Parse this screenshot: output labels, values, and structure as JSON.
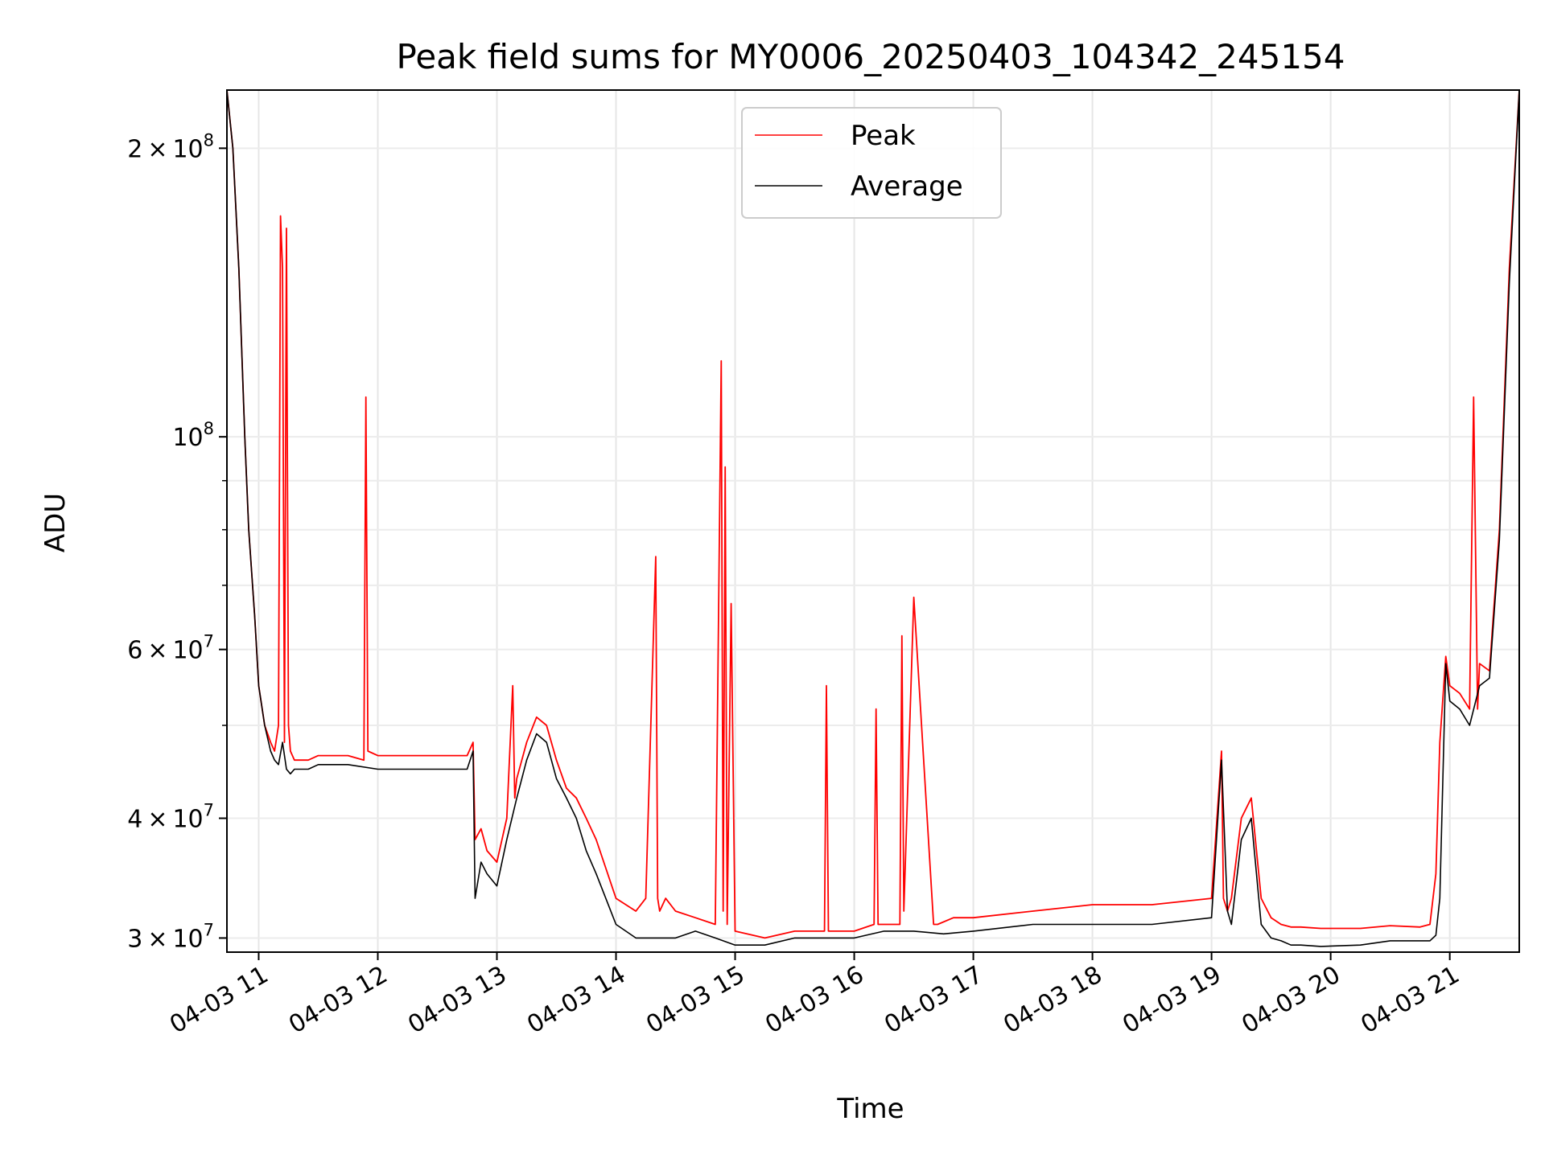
{
  "chart_data": {
    "type": "line",
    "title": "Peak field sums for MY0006_20250403_104342_245154",
    "xlabel": "Time",
    "ylabel": "ADU",
    "y_scale": "log",
    "grid": true,
    "legend_position": "top-center",
    "x_ticks": [
      "04-03 11",
      "04-03 12",
      "04-03 13",
      "04-03 14",
      "04-03 15",
      "04-03 16",
      "04-03 17",
      "04-03 18",
      "04-03 19",
      "04-03 20",
      "04-03 21"
    ],
    "x_range": [
      "04-03 10:44",
      "04-03 21:35"
    ],
    "y_ticks": [
      {
        "value": 30000000,
        "mantissa": "3",
        "exponent": "7"
      },
      {
        "value": 40000000,
        "mantissa": "4",
        "exponent": "7"
      },
      {
        "value": 60000000,
        "mantissa": "6",
        "exponent": "7"
      },
      {
        "value": 100000000,
        "mantissa": "",
        "exponent": "8"
      },
      {
        "value": 200000000,
        "mantissa": "2",
        "exponent": "8"
      }
    ],
    "y_range": [
      29000000,
      230000000
    ],
    "series": [
      {
        "name": "Peak",
        "color": "#ff0000",
        "x": [
          "10:44",
          "10:47",
          "10:50",
          "10:53",
          "10:55",
          "10:58",
          "11:00",
          "11:03",
          "11:06",
          "11:08",
          "11:10",
          "11:11",
          "11:12",
          "11:13",
          "11:14",
          "11:15",
          "11:16",
          "11:18",
          "11:20",
          "11:25",
          "11:30",
          "11:45",
          "11:53",
          "11:54",
          "11:55",
          "12:00",
          "12:15",
          "12:30",
          "12:45",
          "12:48",
          "12:49",
          "12:52",
          "12:55",
          "13:00",
          "13:05",
          "13:08",
          "13:09",
          "13:10",
          "13:15",
          "13:20",
          "13:25",
          "13:30",
          "13:35",
          "13:40",
          "13:45",
          "13:50",
          "14:00",
          "14:10",
          "14:15",
          "14:20",
          "14:21",
          "14:22",
          "14:25",
          "14:30",
          "14:40",
          "14:50",
          "14:53",
          "14:54",
          "14:55",
          "14:56",
          "14:58",
          "15:00",
          "15:15",
          "15:30",
          "15:45",
          "15:46",
          "15:47",
          "16:00",
          "16:10",
          "16:11",
          "16:12",
          "16:23",
          "16:24",
          "16:25",
          "16:30",
          "16:40",
          "16:41",
          "16:42",
          "16:50",
          "17:00",
          "17:30",
          "18:00",
          "18:30",
          "19:00",
          "19:05",
          "19:06",
          "19:08",
          "19:10",
          "19:15",
          "19:20",
          "19:25",
          "19:30",
          "19:35",
          "19:40",
          "19:45",
          "19:55",
          "20:15",
          "20:30",
          "20:45",
          "20:50",
          "20:53",
          "20:55",
          "20:58",
          "21:00",
          "21:05",
          "21:10",
          "21:12",
          "21:14",
          "21:15",
          "21:20",
          "21:25",
          "21:30",
          "21:35"
        ],
        "values": [
          230000000,
          200000000,
          150000000,
          100000000,
          80000000,
          65000000,
          55000000,
          50000000,
          48000000,
          47000000,
          50000000,
          170000000,
          150000000,
          48000000,
          165000000,
          50000000,
          47000000,
          46000000,
          46000000,
          46000000,
          46500000,
          46500000,
          46000000,
          110000000,
          47000000,
          46500000,
          46500000,
          46500000,
          46500000,
          48000000,
          38000000,
          39000000,
          37000000,
          36000000,
          40000000,
          55000000,
          42000000,
          44000000,
          48000000,
          51000000,
          50000000,
          46000000,
          43000000,
          42000000,
          40000000,
          38000000,
          33000000,
          32000000,
          33000000,
          75000000,
          33000000,
          32000000,
          33000000,
          32000000,
          31500000,
          31000000,
          120000000,
          32000000,
          93000000,
          31000000,
          67000000,
          30500000,
          30000000,
          30500000,
          30500000,
          55000000,
          30500000,
          30500000,
          31000000,
          52000000,
          31000000,
          31000000,
          62000000,
          32000000,
          68000000,
          31000000,
          31000000,
          31000000,
          31500000,
          31500000,
          32000000,
          32500000,
          32500000,
          33000000,
          47000000,
          33000000,
          32000000,
          33000000,
          40000000,
          42000000,
          33000000,
          31500000,
          31000000,
          30800000,
          30800000,
          30700000,
          30700000,
          30900000,
          30800000,
          31000000,
          35000000,
          48000000,
          59000000,
          55000000,
          54000000,
          52000000,
          110000000,
          52000000,
          58000000,
          57000000,
          80000000,
          150000000,
          230000000
        ]
      },
      {
        "name": "Average",
        "color": "#000000",
        "x": [
          "10:44",
          "10:47",
          "10:50",
          "10:53",
          "10:55",
          "10:58",
          "11:00",
          "11:03",
          "11:06",
          "11:08",
          "11:10",
          "11:12",
          "11:14",
          "11:16",
          "11:18",
          "11:20",
          "11:25",
          "11:30",
          "11:45",
          "12:00",
          "12:15",
          "12:30",
          "12:45",
          "12:48",
          "12:49",
          "12:52",
          "12:55",
          "13:00",
          "13:05",
          "13:10",
          "13:15",
          "13:20",
          "13:25",
          "13:30",
          "13:35",
          "13:40",
          "13:45",
          "13:50",
          "14:00",
          "14:10",
          "14:20",
          "14:30",
          "14:40",
          "14:50",
          "15:00",
          "15:15",
          "15:30",
          "15:45",
          "16:00",
          "16:15",
          "16:30",
          "16:45",
          "17:00",
          "17:30",
          "18:00",
          "18:30",
          "19:00",
          "19:05",
          "19:08",
          "19:10",
          "19:15",
          "19:20",
          "19:25",
          "19:30",
          "19:35",
          "19:40",
          "19:45",
          "19:55",
          "20:15",
          "20:30",
          "20:45",
          "20:50",
          "20:53",
          "20:55",
          "20:58",
          "21:00",
          "21:05",
          "21:10",
          "21:15",
          "21:20",
          "21:25",
          "21:30",
          "21:35"
        ],
        "values": [
          230000000,
          200000000,
          150000000,
          100000000,
          80000000,
          65000000,
          55000000,
          50000000,
          47000000,
          46000000,
          45500000,
          48000000,
          45000000,
          44500000,
          45000000,
          45000000,
          45000000,
          45500000,
          45500000,
          45000000,
          45000000,
          45000000,
          45000000,
          47000000,
          33000000,
          36000000,
          35000000,
          34000000,
          38000000,
          42000000,
          46000000,
          49000000,
          48000000,
          44000000,
          42000000,
          40000000,
          37000000,
          35000000,
          31000000,
          30000000,
          30000000,
          30000000,
          30500000,
          30000000,
          29500000,
          29500000,
          30000000,
          30000000,
          30000000,
          30500000,
          30500000,
          30300000,
          30500000,
          31000000,
          31000000,
          31000000,
          31500000,
          46000000,
          32000000,
          31000000,
          38000000,
          40000000,
          31000000,
          30000000,
          29800000,
          29500000,
          29500000,
          29400000,
          29500000,
          29800000,
          29800000,
          29800000,
          30200000,
          33000000,
          58000000,
          53000000,
          52000000,
          50000000,
          55000000,
          56000000,
          78000000,
          145000000,
          230000000
        ]
      }
    ]
  }
}
